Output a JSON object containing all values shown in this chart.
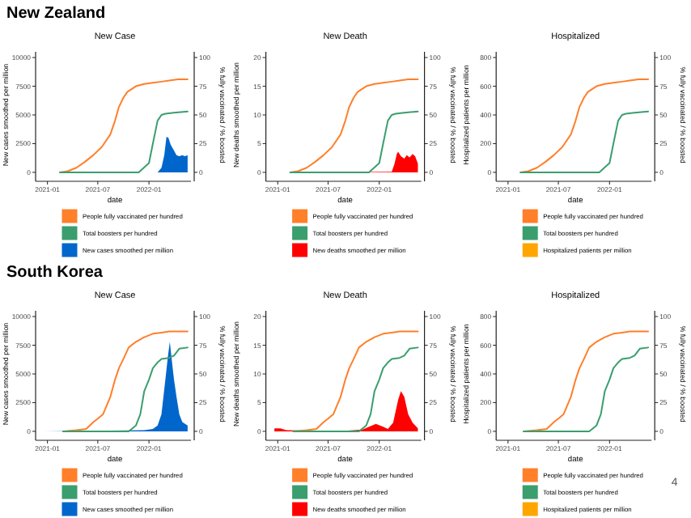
{
  "chart_data": [
    {
      "type": "line",
      "title": "New Case",
      "annotations": [
        "New Zealand"
      ],
      "xlabel": "date",
      "ylabel": "New cases smoothed per million",
      "y2label": "% fully vaccinated / % boosted",
      "xlim": [
        "2020-12-01",
        "2022-06-01"
      ],
      "xticks": [
        "2021-01",
        "2021-07",
        "2022-01"
      ],
      "ylim": [
        -500,
        10500
      ],
      "yticks": [
        0,
        2500,
        5000,
        7500,
        10000
      ],
      "y2lim": [
        -5,
        105
      ],
      "y2ticks": [
        0,
        25,
        50,
        75,
        100
      ],
      "legend": "bottom",
      "grid": false,
      "series": [
        {
          "name": "People fully vaccinated per hundred",
          "axis": "y2",
          "color": "#ff7f2a",
          "x": [
            "2021-02-15",
            "2021-03-15",
            "2021-04-15",
            "2021-05-15",
            "2021-06-15",
            "2021-07-15",
            "2021-08-15",
            "2021-09-01",
            "2021-09-15",
            "2021-10-01",
            "2021-10-15",
            "2021-11-15",
            "2021-12-15",
            "2022-01-15",
            "2022-02-15",
            "2022-03-15",
            "2022-04-15",
            "2022-05-20"
          ],
          "values": [
            0,
            1,
            4,
            9,
            15,
            22,
            33,
            45,
            57,
            65,
            70,
            75,
            77,
            78,
            79,
            80,
            81,
            81
          ]
        },
        {
          "name": "Total boosters per hundred",
          "axis": "y2",
          "color": "#3a9e6e",
          "x": [
            "2021-02-15",
            "2021-11-25",
            "2022-01-01",
            "2022-01-15",
            "2022-02-01",
            "2022-02-15",
            "2022-03-01",
            "2022-04-01",
            "2022-05-20"
          ],
          "values": [
            0,
            0,
            8,
            25,
            45,
            50,
            51,
            52,
            53
          ]
        },
        {
          "name": "New cases smoothed per million",
          "type": "area",
          "color": "#0066cc",
          "x": [
            "2021-02-15",
            "2022-01-15",
            "2022-02-01",
            "2022-02-15",
            "2022-02-25",
            "2022-03-05",
            "2022-03-12",
            "2022-03-20",
            "2022-04-01",
            "2022-04-10",
            "2022-04-20",
            "2022-05-01",
            "2022-05-10",
            "2022-05-20"
          ],
          "values": [
            0,
            0,
            0,
            400,
            1500,
            3100,
            3000,
            2400,
            1900,
            1500,
            1400,
            1500,
            1400,
            1500
          ]
        }
      ]
    },
    {
      "type": "line",
      "title": "New Death",
      "xlabel": "date",
      "ylabel": "New deaths smoothed per million",
      "y2label": "% fully vaccinated / % boosted",
      "xlim": [
        "2020-12-01",
        "2022-06-01"
      ],
      "xticks": [
        "2021-01",
        "2021-07",
        "2022-01"
      ],
      "ylim": [
        -1,
        21
      ],
      "yticks": [
        0,
        5,
        10,
        15,
        20
      ],
      "y2lim": [
        -5,
        105
      ],
      "y2ticks": [
        0,
        25,
        50,
        75,
        100
      ],
      "legend": "bottom",
      "grid": false,
      "series": [
        {
          "name": "People fully vaccinated per hundred",
          "axis": "y2",
          "color": "#ff7f2a",
          "x": [
            "2021-02-15",
            "2021-03-15",
            "2021-04-15",
            "2021-05-15",
            "2021-06-15",
            "2021-07-15",
            "2021-08-15",
            "2021-09-01",
            "2021-09-15",
            "2021-10-01",
            "2021-10-15",
            "2021-11-15",
            "2021-12-15",
            "2022-01-15",
            "2022-02-15",
            "2022-03-15",
            "2022-04-15",
            "2022-05-20"
          ],
          "values": [
            0,
            1,
            4,
            9,
            15,
            22,
            33,
            45,
            57,
            65,
            70,
            75,
            77,
            78,
            79,
            80,
            81,
            81
          ]
        },
        {
          "name": "Total boosters per hundred",
          "axis": "y2",
          "color": "#3a9e6e",
          "x": [
            "2021-02-15",
            "2021-11-25",
            "2022-01-01",
            "2022-01-15",
            "2022-02-01",
            "2022-02-15",
            "2022-03-01",
            "2022-04-01",
            "2022-05-20"
          ],
          "values": [
            0,
            0,
            8,
            25,
            45,
            50,
            51,
            52,
            53
          ]
        },
        {
          "name": "New deaths smoothed per million",
          "type": "area",
          "color": "#ff0000",
          "x": [
            "2021-02-15",
            "2022-02-15",
            "2022-02-25",
            "2022-03-05",
            "2022-03-10",
            "2022-03-20",
            "2022-04-01",
            "2022-04-10",
            "2022-04-20",
            "2022-05-01",
            "2022-05-10",
            "2022-05-20"
          ],
          "values": [
            0,
            0.1,
            1.5,
            3.2,
            3.6,
            2.8,
            2.4,
            3.0,
            2.6,
            3.2,
            2.8,
            1.5
          ]
        }
      ]
    },
    {
      "type": "line",
      "title": "Hospitalized",
      "xlabel": "date",
      "ylabel": "Hospitalized patients per million",
      "y2label": "% fully vaccinated / % boosted",
      "xlim": [
        "2020-12-01",
        "2022-06-01"
      ],
      "xticks": [
        "2021-01",
        "2021-07",
        "2022-01"
      ],
      "ylim": [
        -40,
        840
      ],
      "yticks": [
        0,
        200,
        400,
        600,
        800
      ],
      "y2lim": [
        -5,
        105
      ],
      "y2ticks": [
        0,
        25,
        50,
        75,
        100
      ],
      "legend": "bottom",
      "grid": false,
      "series": [
        {
          "name": "People fully vaccinated per hundred",
          "axis": "y2",
          "color": "#ff7f2a",
          "x": [
            "2021-02-15",
            "2021-03-15",
            "2021-04-15",
            "2021-05-15",
            "2021-06-15",
            "2021-07-15",
            "2021-08-15",
            "2021-09-01",
            "2021-09-15",
            "2021-10-01",
            "2021-10-15",
            "2021-11-15",
            "2021-12-15",
            "2022-01-15",
            "2022-02-15",
            "2022-03-15",
            "2022-04-15",
            "2022-05-20"
          ],
          "values": [
            0,
            1,
            4,
            9,
            15,
            22,
            33,
            45,
            57,
            65,
            70,
            75,
            77,
            78,
            79,
            80,
            81,
            81
          ]
        },
        {
          "name": "Total boosters per hundred",
          "axis": "y2",
          "color": "#3a9e6e",
          "x": [
            "2021-02-15",
            "2021-11-25",
            "2022-01-01",
            "2022-01-15",
            "2022-02-01",
            "2022-02-15",
            "2022-03-01",
            "2022-04-01",
            "2022-05-20"
          ],
          "values": [
            0,
            0,
            8,
            25,
            45,
            50,
            51,
            52,
            53
          ]
        },
        {
          "name": "Hospitalized patients per million",
          "type": "area",
          "color": "#ffa500"
        }
      ]
    },
    {
      "type": "line",
      "title": "New Case",
      "annotations": [
        "South Korea"
      ],
      "xlabel": "date",
      "ylabel": "New cases smoothed per million",
      "y2label": "% fully vaccinated / % boosted",
      "xlim": [
        "2020-12-01",
        "2022-06-01"
      ],
      "xticks": [
        "2021-01",
        "2021-07",
        "2022-01"
      ],
      "ylim": [
        -500,
        10500
      ],
      "yticks": [
        0,
        2500,
        5000,
        7500,
        10000
      ],
      "y2lim": [
        -5,
        105
      ],
      "y2ticks": [
        0,
        25,
        50,
        75,
        100
      ],
      "legend": "bottom",
      "grid": false,
      "series": [
        {
          "name": "People fully vaccinated per hundred",
          "axis": "y2",
          "color": "#ff7f2a",
          "x": [
            "2021-02-26",
            "2021-04-15",
            "2021-05-20",
            "2021-06-15",
            "2021-07-01",
            "2021-07-20",
            "2021-08-15",
            "2021-09-01",
            "2021-09-15",
            "2021-10-01",
            "2021-10-20",
            "2021-11-15",
            "2021-12-15",
            "2022-01-15",
            "2022-02-15",
            "2022-03-15",
            "2022-04-15",
            "2022-05-20"
          ],
          "values": [
            0,
            1,
            2,
            8,
            11,
            15,
            30,
            45,
            55,
            63,
            73,
            78,
            82,
            85,
            86,
            87,
            87,
            87
          ]
        },
        {
          "name": "Total boosters per hundred",
          "axis": "y2",
          "color": "#3a9e6e",
          "x": [
            "2021-02-26",
            "2021-10-20",
            "2021-11-15",
            "2021-12-01",
            "2021-12-15",
            "2022-01-01",
            "2022-01-15",
            "2022-02-01",
            "2022-02-15",
            "2022-03-15",
            "2022-04-01",
            "2022-04-20",
            "2022-05-20"
          ],
          "values": [
            0,
            0,
            5,
            15,
            35,
            45,
            55,
            60,
            63,
            64,
            66,
            72,
            73
          ]
        },
        {
          "name": "New cases smoothed per million",
          "type": "area",
          "color": "#0066cc",
          "x": [
            "2020-12-20",
            "2021-12-15",
            "2022-01-15",
            "2022-02-01",
            "2022-02-15",
            "2022-03-01",
            "2022-03-10",
            "2022-03-17",
            "2022-03-25",
            "2022-04-01",
            "2022-04-10",
            "2022-04-20",
            "2022-05-01",
            "2022-05-20"
          ],
          "values": [
            0,
            100,
            200,
            500,
            1500,
            4500,
            6500,
            7800,
            6000,
            4500,
            3000,
            1500,
            800,
            500
          ]
        }
      ]
    },
    {
      "type": "line",
      "title": "New Death",
      "xlabel": "date",
      "ylabel": "New deaths smoothed per million",
      "y2label": "% fully vaccinated / % boosted",
      "xlim": [
        "2020-12-01",
        "2022-06-01"
      ],
      "xticks": [
        "2021-01",
        "2021-07",
        "2022-01"
      ],
      "ylim": [
        -1,
        21
      ],
      "yticks": [
        0,
        5,
        10,
        15,
        20
      ],
      "y2lim": [
        -5,
        105
      ],
      "y2ticks": [
        0,
        25,
        50,
        75,
        100
      ],
      "legend": "bottom",
      "grid": false,
      "series": [
        {
          "name": "People fully vaccinated per hundred",
          "axis": "y2",
          "color": "#ff7f2a",
          "x": [
            "2021-02-26",
            "2021-04-15",
            "2021-05-20",
            "2021-06-15",
            "2021-07-01",
            "2021-07-20",
            "2021-08-15",
            "2021-09-01",
            "2021-09-15",
            "2021-10-01",
            "2021-10-20",
            "2021-11-15",
            "2021-12-15",
            "2022-01-15",
            "2022-02-15",
            "2022-03-15",
            "2022-04-15",
            "2022-05-20"
          ],
          "values": [
            0,
            1,
            2,
            8,
            11,
            15,
            30,
            45,
            55,
            63,
            73,
            78,
            82,
            85,
            86,
            87,
            87,
            87
          ]
        },
        {
          "name": "Total boosters per hundred",
          "axis": "y2",
          "color": "#3a9e6e",
          "x": [
            "2021-02-26",
            "2021-10-20",
            "2021-11-15",
            "2021-12-01",
            "2021-12-15",
            "2022-01-01",
            "2022-01-15",
            "2022-02-01",
            "2022-02-15",
            "2022-03-15",
            "2022-04-01",
            "2022-04-20",
            "2022-05-20"
          ],
          "values": [
            0,
            0,
            5,
            15,
            35,
            45,
            55,
            60,
            63,
            64,
            66,
            72,
            73
          ]
        },
        {
          "name": "New deaths smoothed per million",
          "type": "area",
          "color": "#ff0000",
          "x": [
            "2020-12-20",
            "2021-01-10",
            "2021-02-01",
            "2021-06-01",
            "2021-09-01",
            "2021-11-01",
            "2021-12-20",
            "2022-01-15",
            "2022-02-01",
            "2022-02-20",
            "2022-03-10",
            "2022-03-20",
            "2022-04-01",
            "2022-04-15",
            "2022-05-01",
            "2022-05-20"
          ],
          "values": [
            0.5,
            0.5,
            0.2,
            0.1,
            0.1,
            0.3,
            1.3,
            0.8,
            0.4,
            1.5,
            5.5,
            7.0,
            6.0,
            3.0,
            1.5,
            0.5
          ]
        }
      ]
    },
    {
      "type": "line",
      "title": "Hospitalized",
      "annotations": [
        "4"
      ],
      "xlabel": "date",
      "ylabel": "Hospitalized patients per million",
      "y2label": "% fully vaccinated / % boosted",
      "xlim": [
        "2020-12-01",
        "2022-06-01"
      ],
      "xticks": [
        "2021-01",
        "2021-07",
        "2022-01"
      ],
      "ylim": [
        -40,
        840
      ],
      "yticks": [
        0,
        200,
        400,
        600,
        800
      ],
      "y2lim": [
        -5,
        105
      ],
      "y2ticks": [
        0,
        25,
        50,
        75,
        100
      ],
      "legend": "bottom",
      "grid": false,
      "series": [
        {
          "name": "People fully vaccinated per hundred",
          "axis": "y2",
          "color": "#ff7f2a",
          "x": [
            "2021-02-26",
            "2021-04-15",
            "2021-05-20",
            "2021-06-15",
            "2021-07-01",
            "2021-07-20",
            "2021-08-15",
            "2021-09-01",
            "2021-09-15",
            "2021-10-01",
            "2021-10-20",
            "2021-11-15",
            "2021-12-15",
            "2022-01-15",
            "2022-02-15",
            "2022-03-15",
            "2022-04-15",
            "2022-05-20"
          ],
          "values": [
            0,
            1,
            2,
            8,
            11,
            15,
            30,
            45,
            55,
            63,
            73,
            78,
            82,
            85,
            86,
            87,
            87,
            87
          ]
        },
        {
          "name": "Total boosters per hundred",
          "axis": "y2",
          "color": "#3a9e6e",
          "x": [
            "2021-02-26",
            "2021-10-20",
            "2021-11-15",
            "2021-12-01",
            "2021-12-15",
            "2022-01-01",
            "2022-01-15",
            "2022-02-01",
            "2022-02-15",
            "2022-03-15",
            "2022-04-01",
            "2022-04-20",
            "2022-05-20"
          ],
          "values": [
            0,
            0,
            5,
            15,
            35,
            45,
            55,
            60,
            63,
            64,
            66,
            72,
            73
          ]
        },
        {
          "name": "Hospitalized patients per million",
          "type": "area",
          "color": "#ffa500"
        }
      ]
    }
  ]
}
